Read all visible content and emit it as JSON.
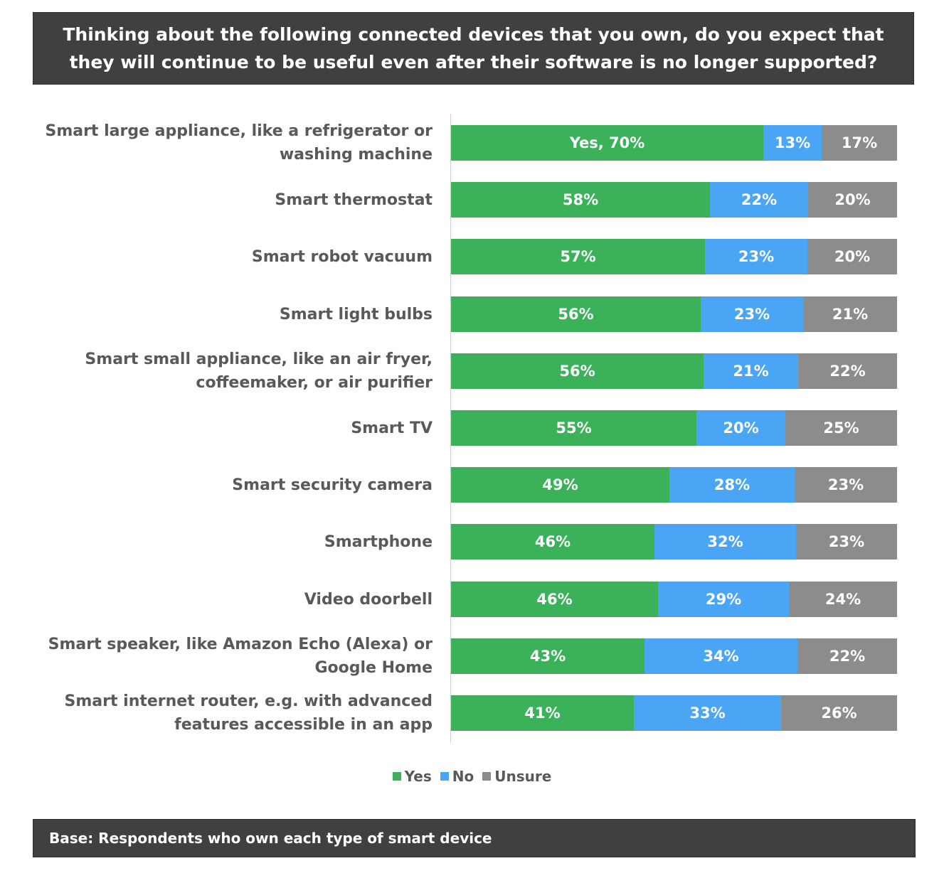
{
  "title": "Thinking about the following connected devices that you own, do you expect that they will continue to be useful even after their software is no longer supported?",
  "footer": "Base: Respondents who own each type of smart device",
  "colors": {
    "yes": "#3bb15a",
    "no": "#4aa5f5",
    "unsure": "#8c8c8c"
  },
  "chart_data": {
    "type": "bar",
    "orientation": "horizontal",
    "stacked": true,
    "categories": [
      "Smart large appliance, like a refrigerator or washing machine",
      "Smart thermostat",
      "Smart robot vacuum",
      "Smart light bulbs",
      "Smart small appliance, like an air fryer, coffeemaker, or air purifier",
      "Smart TV",
      "Smart security camera",
      "Smartphone",
      "Video doorbell",
      "Smart speaker, like Amazon Echo (Alexa) or Google Home",
      "Smart internet router, e.g. with advanced features accessible in an app"
    ],
    "series": [
      {
        "name": "Yes",
        "values": [
          70,
          58,
          57,
          56,
          56,
          55,
          49,
          46,
          46,
          43,
          41
        ]
      },
      {
        "name": "No",
        "values": [
          13,
          22,
          23,
          23,
          21,
          20,
          28,
          32,
          29,
          34,
          33
        ]
      },
      {
        "name": "Unsure",
        "values": [
          17,
          20,
          20,
          21,
          22,
          25,
          23,
          23,
          24,
          22,
          26
        ]
      }
    ],
    "data_labels": [
      [
        "Yes, 70%",
        "13%",
        "17%"
      ],
      [
        "58%",
        "22%",
        "20%"
      ],
      [
        "57%",
        "23%",
        "20%"
      ],
      [
        "56%",
        "23%",
        "21%"
      ],
      [
        "56%",
        "21%",
        "22%"
      ],
      [
        "55%",
        "20%",
        "25%"
      ],
      [
        "49%",
        "28%",
        "23%"
      ],
      [
        "46%",
        "32%",
        "23%"
      ],
      [
        "46%",
        "29%",
        "24%"
      ],
      [
        "43%",
        "34%",
        "22%"
      ],
      [
        "41%",
        "33%",
        "26%"
      ]
    ],
    "legend": [
      "Yes",
      "No",
      "Unsure"
    ],
    "legend_position": "bottom",
    "grid": false
  }
}
